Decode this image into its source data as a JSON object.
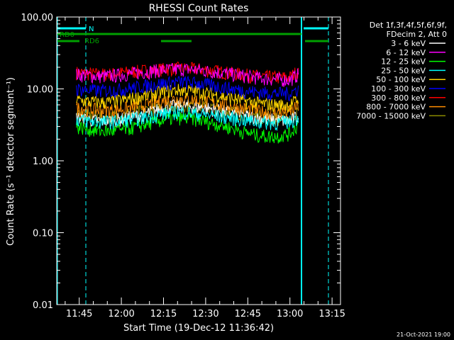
{
  "chart_data": {
    "type": "line",
    "title": "RHESSI Count Rates",
    "xlabel": "Start Time (19-Dec-12 11:36:42)",
    "ylabel": "Count Rate (s⁻¹ detector segment⁻¹)",
    "y_scale": "log",
    "ylim": [
      0.01,
      100
    ],
    "xlim": [
      "11:37",
      "13:18"
    ],
    "x_ticks": [
      "11:45",
      "12:00",
      "12:15",
      "12:30",
      "12:45",
      "13:00",
      "13:15"
    ],
    "y_ticks": [
      "0.01",
      "0.10",
      "1.00",
      "10.00",
      "100.00"
    ],
    "grid": false,
    "legend": {
      "position": "top-right-outside",
      "header": [
        "Det 1f,3f,4f,5f,6f,9f,",
        "FDecim 2, Att 0"
      ]
    },
    "x": [
      "11:44",
      "11:48",
      "11:52",
      "11:56",
      "12:00",
      "12:04",
      "12:08",
      "12:12",
      "12:16",
      "12:20",
      "12:24",
      "12:28",
      "12:32",
      "12:36",
      "12:40",
      "12:44",
      "12:48",
      "12:52",
      "12:56",
      "13:00",
      "13:03"
    ],
    "series": [
      {
        "name": "3 - 6 keV",
        "color": "#ffffff",
        "values": [
          4.0,
          3.8,
          3.6,
          3.7,
          3.8,
          4.1,
          4.5,
          5.0,
          5.6,
          5.9,
          5.8,
          5.6,
          5.3,
          4.9,
          4.6,
          4.3,
          4.0,
          3.8,
          3.7,
          3.6,
          4.2
        ]
      },
      {
        "name": "6 - 12 keV",
        "color": "#ff00ff",
        "values": [
          16,
          15.5,
          15,
          15.2,
          15.8,
          16.5,
          17.3,
          18,
          18.6,
          19,
          18.8,
          18.3,
          17.6,
          16.8,
          16,
          15.2,
          14.5,
          13.9,
          13.6,
          13.4,
          16
        ]
      },
      {
        "name": "12 - 25 keV",
        "color": "#00ff00",
        "values": [
          3.0,
          2.8,
          2.6,
          2.6,
          2.7,
          2.9,
          3.2,
          3.5,
          3.8,
          4.0,
          3.9,
          3.7,
          3.4,
          3.1,
          2.8,
          2.5,
          2.3,
          2.2,
          2.2,
          2.4,
          3.2
        ]
      },
      {
        "name": "25 - 50 keV",
        "color": "#00ffff",
        "values": [
          3.8,
          3.6,
          3.5,
          3.5,
          3.6,
          3.8,
          4.0,
          4.3,
          4.6,
          4.8,
          4.7,
          4.5,
          4.3,
          4.1,
          3.9,
          3.7,
          3.5,
          3.4,
          3.4,
          3.5,
          4.0
        ]
      },
      {
        "name": "50 - 100 keV",
        "color": "#ffd700",
        "values": [
          7,
          6.7,
          6.5,
          6.6,
          6.9,
          7.4,
          8,
          8.6,
          9.3,
          9.7,
          9.5,
          9.1,
          8.5,
          7.9,
          7.3,
          6.8,
          6.4,
          6.1,
          6,
          6,
          7.2
        ]
      },
      {
        "name": "100 - 300 keV",
        "color": "#0000ff",
        "values": [
          10,
          9.7,
          9.5,
          9.6,
          9.9,
          10.4,
          11,
          11.6,
          12.2,
          12.6,
          12.4,
          11.9,
          11.3,
          10.6,
          10,
          9.5,
          9.1,
          8.8,
          8.7,
          8.7,
          10.2
        ]
      },
      {
        "name": "300 - 800 keV",
        "color": "#ff0000",
        "values": [
          17,
          16.5,
          16,
          16.2,
          16.8,
          17.4,
          18,
          18.6,
          19.1,
          19.4,
          19.2,
          18.8,
          18.1,
          17.3,
          16.5,
          15.8,
          15.2,
          14.7,
          14.5,
          14.6,
          18
        ]
      },
      {
        "name": "800 - 7000 keV",
        "color": "#ff8c00",
        "values": [
          5.5,
          5.3,
          5.1,
          5.1,
          5.3,
          5.6,
          6.0,
          6.5,
          7.0,
          7.3,
          7.2,
          6.9,
          6.5,
          6.1,
          5.7,
          5.3,
          5.0,
          4.8,
          4.7,
          4.8,
          5.8
        ]
      },
      {
        "name": "7000 - 15000 keV",
        "color": "#8b8b00",
        "values": [
          4.5,
          4.3,
          4.1,
          4.1,
          4.3,
          4.6,
          5.0,
          5.4,
          5.8,
          6.1,
          6.0,
          5.8,
          5.5,
          5.1,
          4.8,
          4.5,
          4.2,
          4.0,
          3.9,
          4.0,
          4.8
        ]
      }
    ],
    "annotations": {
      "attenuator_label": "N",
      "rd0_label": "RD0",
      "rd6_label": "RD6"
    }
  },
  "footer": {
    "timestamp": "21-Oct-2021 19:00"
  }
}
